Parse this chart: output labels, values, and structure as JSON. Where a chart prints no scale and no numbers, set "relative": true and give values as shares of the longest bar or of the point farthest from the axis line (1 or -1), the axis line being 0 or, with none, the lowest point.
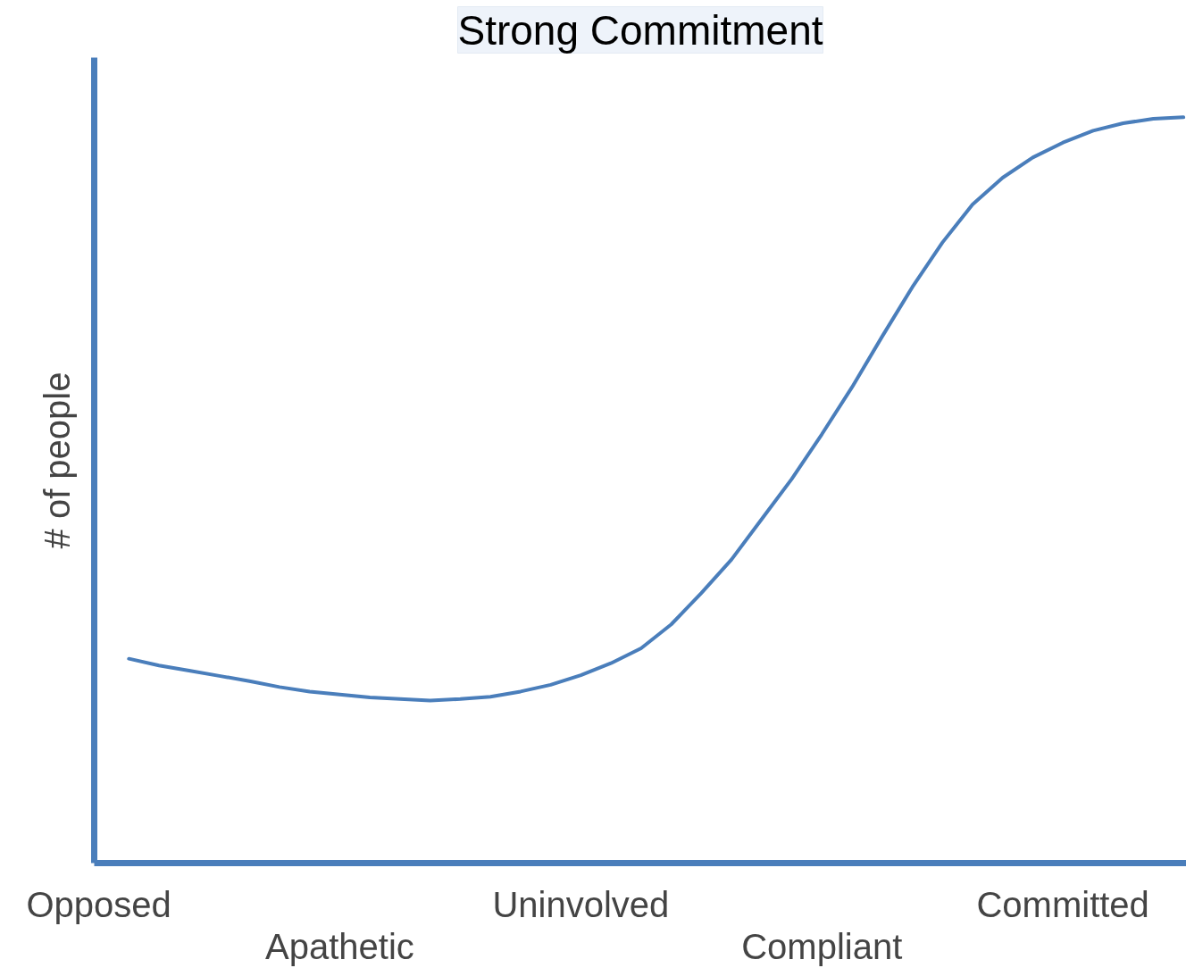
{
  "chart_data": {
    "type": "line",
    "title": "Strong Commitment",
    "ylabel": "# of people",
    "relative": true,
    "tick_labels": "x",
    "grid": false,
    "color": "#4a7ebb",
    "categories": [
      "Opposed",
      null,
      null,
      null,
      null,
      null,
      null,
      null,
      "Apathetic",
      null,
      null,
      null,
      null,
      null,
      null,
      null,
      "Uninvolved",
      null,
      null,
      null,
      null,
      null,
      null,
      null,
      "Compliant",
      null,
      null,
      null,
      null,
      null,
      null,
      null,
      "Committed",
      null,
      null,
      null,
      null
    ],
    "values": [
      null,
      0.274,
      0.265,
      0.258,
      0.251,
      0.244,
      0.236,
      0.23,
      0.226,
      0.222,
      0.22,
      0.218,
      0.22,
      0.223,
      0.23,
      0.239,
      0.252,
      0.268,
      0.288,
      0.32,
      0.362,
      0.407,
      0.461,
      0.515,
      0.575,
      0.638,
      0.706,
      0.772,
      0.832,
      0.883,
      0.919,
      0.946,
      0.966,
      0.982,
      0.992,
      0.998,
      1.0
    ]
  }
}
